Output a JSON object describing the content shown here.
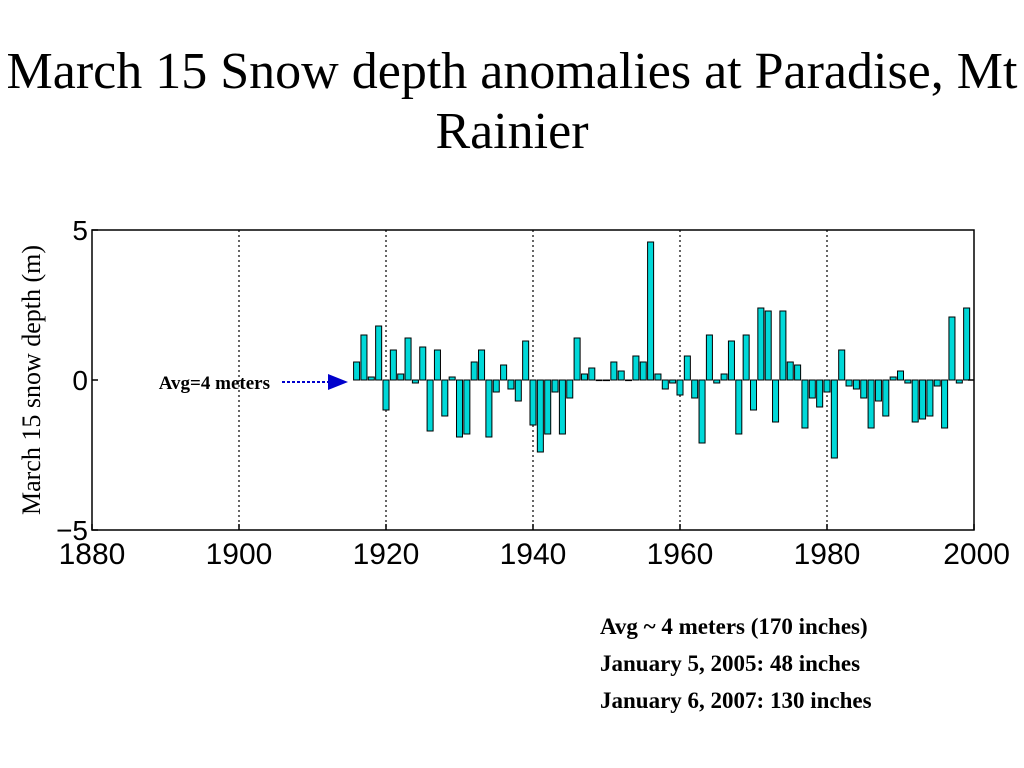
{
  "title": "March 15 Snow depth anomalies at Paradise, Mt Rainier",
  "notes": [
    "Avg ~ 4 meters (170 inches)",
    "January 5, 2005: 48 inches",
    "January 6, 2007: 130 inches"
  ],
  "colors": {
    "bar_fill": "#00d8d8",
    "bar_stroke": "#000000",
    "arrow": "#0000cc",
    "frame": "#000000"
  },
  "chart_data": {
    "type": "bar",
    "title": "",
    "xlabel": "",
    "ylabel": "March 15 snow depth (m)",
    "xlim": [
      1880,
      2000
    ],
    "ylim": [
      -5,
      5
    ],
    "xticks": [
      "1880",
      "1900",
      "1920",
      "1940",
      "1960",
      "1980",
      "2000"
    ],
    "yticks": [
      "5",
      "0",
      "−5"
    ],
    "vertical_gridlines_at": [
      1900,
      1920,
      1940,
      1960,
      1980
    ],
    "grid_style": "dotted",
    "annotation": {
      "text": "Avg=4 meters",
      "points_to": [
        1916,
        0
      ]
    },
    "x": [
      1916,
      1917,
      1918,
      1919,
      1920,
      1921,
      1922,
      1923,
      1924,
      1925,
      1926,
      1927,
      1928,
      1929,
      1930,
      1931,
      1932,
      1933,
      1934,
      1935,
      1936,
      1937,
      1938,
      1939,
      1940,
      1941,
      1942,
      1943,
      1944,
      1945,
      1946,
      1947,
      1948,
      1949,
      1950,
      1951,
      1952,
      1953,
      1954,
      1955,
      1956,
      1957,
      1958,
      1959,
      1960,
      1961,
      1962,
      1963,
      1964,
      1965,
      1966,
      1967,
      1968,
      1969,
      1970,
      1971,
      1972,
      1973,
      1974,
      1975,
      1976,
      1977,
      1978,
      1979,
      1980,
      1981,
      1982,
      1983,
      1984,
      1985,
      1986,
      1987,
      1988,
      1989,
      1990,
      1991,
      1992,
      1993,
      1994,
      1995,
      1996,
      1997,
      1998,
      1999
    ],
    "values": [
      0.6,
      1.5,
      0.1,
      1.8,
      -1.0,
      1.0,
      0.2,
      1.4,
      -0.1,
      1.1,
      -1.7,
      1.0,
      -1.2,
      0.1,
      -1.9,
      -1.8,
      0.6,
      1.0,
      -1.9,
      -0.4,
      0.5,
      -0.3,
      -0.7,
      1.3,
      -1.5,
      -2.4,
      -1.8,
      -0.4,
      -1.8,
      -0.6,
      1.4,
      0.2,
      0.4,
      0.0,
      0.0,
      0.6,
      0.3,
      0.0,
      0.8,
      0.6,
      4.6,
      0.2,
      -0.3,
      -0.1,
      -0.5,
      0.8,
      -0.6,
      -2.1,
      1.5,
      -0.1,
      0.2,
      1.3,
      -1.8,
      1.5,
      -1.0,
      2.4,
      2.3,
      -1.4,
      2.3,
      0.6,
      0.5,
      -1.6,
      -0.6,
      -0.9,
      -0.4,
      -2.6,
      1.0,
      -0.2,
      -0.3,
      -0.6,
      -1.6,
      -0.7,
      -1.2,
      0.1,
      0.3,
      -0.1,
      -1.4,
      -1.3,
      -1.2,
      -0.2,
      -1.6,
      2.1,
      -0.1,
      2.4
    ]
  }
}
